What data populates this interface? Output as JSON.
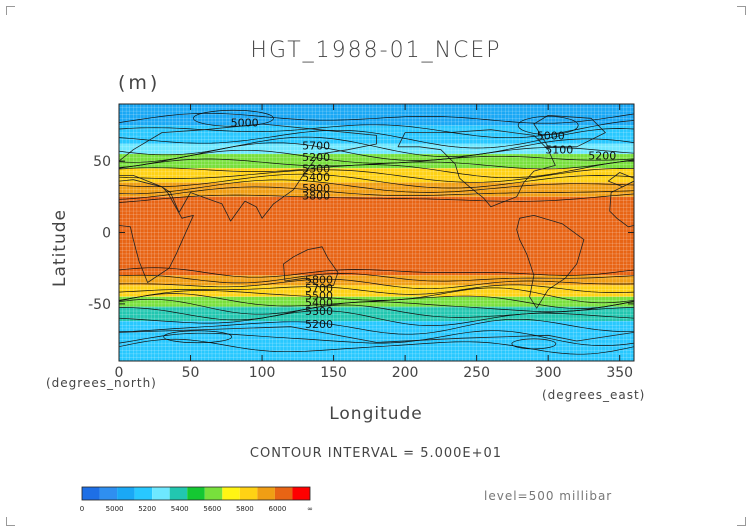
{
  "chart_data": {
    "type": "heatmap",
    "title": "HGT_1988-01_NCEP",
    "units": "(m)",
    "xlabel": "Longitude",
    "ylabel": "Latitude",
    "x_unit_label": "(degrees_east)",
    "y_unit_label": "(degrees_north)",
    "xlim": [
      0,
      360
    ],
    "ylim": [
      -90,
      90
    ],
    "x_ticks": [
      0,
      50,
      100,
      150,
      200,
      250,
      300,
      350
    ],
    "y_ticks": [
      50,
      0,
      -50
    ],
    "contour_interval_text": "CONTOUR INTERVAL = 5.000E+01",
    "level_text": "level=500 millibar",
    "colorbar": {
      "bounds": [
        0,
        4900,
        5000,
        5100,
        5200,
        5300,
        5400,
        5500,
        5600,
        5700,
        5800,
        5900,
        6000,
        6100
      ],
      "tick_labels": [
        "0",
        "5000",
        "5200",
        "5400",
        "5600",
        "5800",
        "6000",
        "∞"
      ],
      "colors": [
        "#1e6fe6",
        "#2f8ff0",
        "#1aa8f5",
        "#28c8ff",
        "#6ee8ff",
        "#22c7b0",
        "#14c832",
        "#78e03c",
        "#fff514",
        "#ffd214",
        "#f09e14",
        "#e86414",
        "#ff0000"
      ]
    },
    "bands": [
      {
        "lat": [
          75,
          90
        ],
        "value": 5000
      },
      {
        "lat": [
          62,
          75
        ],
        "value": 5100
      },
      {
        "lat": [
          55,
          62
        ],
        "value": 5250
      },
      {
        "lat": [
          45,
          55
        ],
        "value": 5500
      },
      {
        "lat": [
          35,
          45
        ],
        "value": 5700
      },
      {
        "lat": [
          25,
          35
        ],
        "value": 5800
      },
      {
        "lat": [
          -30,
          25
        ],
        "value": 5900
      },
      {
        "lat": [
          -37,
          -30
        ],
        "value": 5800
      },
      {
        "lat": [
          -45,
          -37
        ],
        "value": 5700
      },
      {
        "lat": [
          -52,
          -45
        ],
        "value": 5500
      },
      {
        "lat": [
          -62,
          -52
        ],
        "value": 5300
      },
      {
        "lat": [
          -90,
          -62
        ],
        "value": 5100
      }
    ],
    "contour_labels": [
      {
        "text": "5000",
        "lon": 78,
        "lat": 77
      },
      {
        "text": "5000",
        "lon": 292,
        "lat": 68
      },
      {
        "text": "5100",
        "lon": 298,
        "lat": 58
      },
      {
        "text": "5200",
        "lon": 328,
        "lat": 54
      },
      {
        "text": "5700",
        "lon": 128,
        "lat": 61
      },
      {
        "text": "5200",
        "lon": 128,
        "lat": 53
      },
      {
        "text": "5300",
        "lon": 128,
        "lat": 45
      },
      {
        "text": "5400",
        "lon": 128,
        "lat": 39
      },
      {
        "text": "5800",
        "lon": 128,
        "lat": 31
      },
      {
        "text": "3800",
        "lon": 128,
        "lat": 26
      },
      {
        "text": "5800",
        "lon": 130,
        "lat": -33
      },
      {
        "text": "5700",
        "lon": 130,
        "lat": -39
      },
      {
        "text": "5500",
        "lon": 130,
        "lat": -44
      },
      {
        "text": "5400",
        "lon": 130,
        "lat": -49
      },
      {
        "text": "5300",
        "lon": 130,
        "lat": -55
      },
      {
        "text": "5200",
        "lon": 130,
        "lat": -64
      }
    ]
  }
}
